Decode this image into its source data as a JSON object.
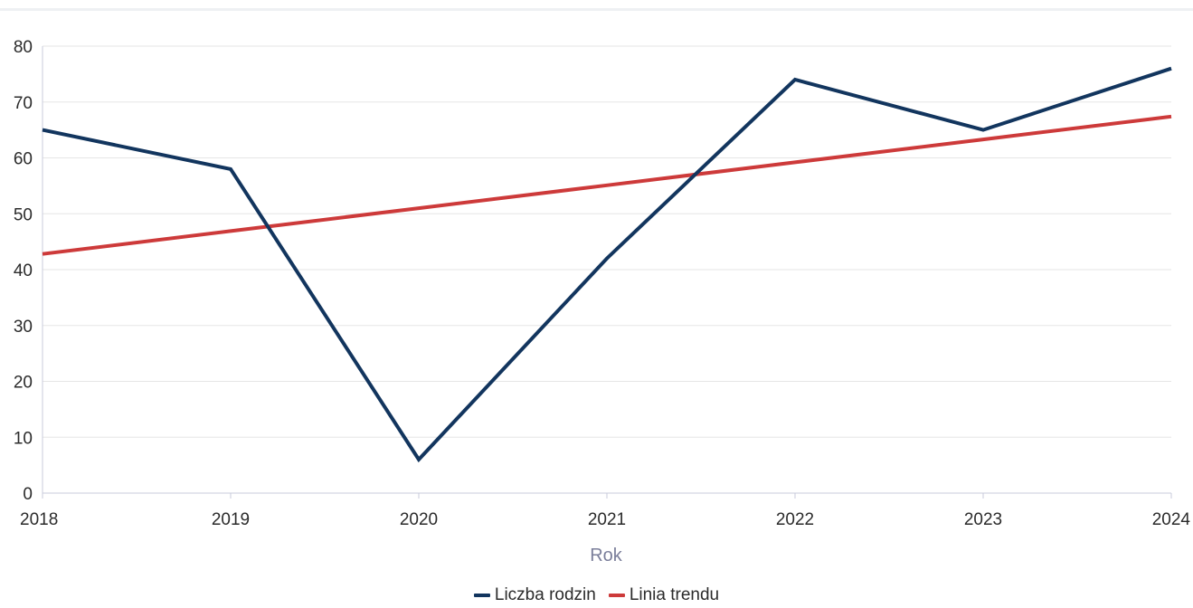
{
  "chart_data": {
    "type": "line",
    "title": "",
    "xlabel": "Rok",
    "ylabel": "",
    "x": [
      "2018",
      "2019",
      "2020",
      "2021",
      "2022",
      "2023",
      "2024"
    ],
    "xlim": [
      2018,
      2024
    ],
    "ylim": [
      0,
      80
    ],
    "yticks": [
      "0",
      "10",
      "20",
      "30",
      "40",
      "50",
      "60",
      "70",
      "80"
    ],
    "grid": true,
    "legend_position": "bottom-center",
    "series": [
      {
        "name": "Liczba rodzin",
        "color": "#12355e",
        "values": [
          65,
          58,
          6,
          42,
          74,
          65,
          76
        ]
      },
      {
        "name": "Linia trendu",
        "color": "#cd3a3a",
        "values": [
          42.8,
          46.9,
          51.0,
          55.1,
          59.2,
          63.3,
          67.4
        ]
      }
    ]
  }
}
